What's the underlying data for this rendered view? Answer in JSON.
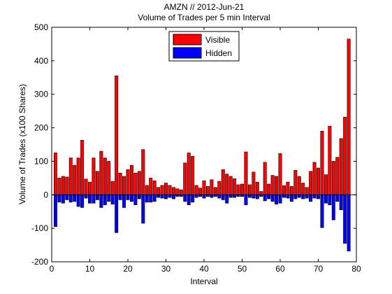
{
  "chart_data": {
    "type": "bar",
    "title": "AMZN // 2012-Jun-21",
    "subtitle": "Volume of Trades per 5 min Interval",
    "xlabel": "Interval",
    "ylabel": "Volume of Trades (x100 Shares)",
    "xlim": [
      0,
      80
    ],
    "ylim": [
      -200,
      500
    ],
    "xticks": [
      0,
      10,
      20,
      30,
      40,
      50,
      60,
      70,
      80
    ],
    "yticks": [
      -200,
      -100,
      0,
      100,
      200,
      300,
      400,
      500
    ],
    "grid": false,
    "legend": "top-center",
    "x": [
      1,
      2,
      3,
      4,
      5,
      6,
      7,
      8,
      9,
      10,
      11,
      12,
      13,
      14,
      15,
      16,
      17,
      18,
      19,
      20,
      21,
      22,
      23,
      24,
      25,
      26,
      27,
      28,
      29,
      30,
      31,
      32,
      33,
      34,
      35,
      36,
      37,
      38,
      39,
      40,
      41,
      42,
      43,
      44,
      45,
      46,
      47,
      48,
      49,
      50,
      51,
      52,
      53,
      54,
      55,
      56,
      57,
      58,
      59,
      60,
      61,
      62,
      63,
      64,
      65,
      66,
      67,
      68,
      69,
      70,
      71,
      72,
      73,
      74,
      75,
      76,
      77,
      78
    ],
    "series": [
      {
        "name": "Visible",
        "color": "#ff0000",
        "values": [
          125,
          50,
          55,
          53,
          110,
          88,
          110,
          163,
          47,
          38,
          110,
          70,
          130,
          110,
          100,
          40,
          355,
          65,
          55,
          75,
          88,
          65,
          70,
          135,
          28,
          50,
          42,
          22,
          28,
          35,
          28,
          22,
          18,
          15,
          95,
          125,
          115,
          28,
          20,
          42,
          25,
          45,
          22,
          40,
          75,
          62,
          55,
          48,
          30,
          32,
          128,
          30,
          68,
          38,
          10,
          97,
          32,
          58,
          55,
          123,
          27,
          38,
          25,
          73,
          55,
          35,
          22,
          70,
          97,
          80,
          190,
          60,
          205,
          100,
          112,
          168,
          232,
          465
        ]
      },
      {
        "name": "Hidden",
        "color": "#0000ff",
        "values": [
          -95,
          -22,
          -25,
          -15,
          -22,
          -20,
          -35,
          -38,
          -10,
          -25,
          -25,
          -15,
          -38,
          -30,
          -20,
          -28,
          -113,
          -15,
          -38,
          -15,
          -20,
          -30,
          -12,
          -85,
          -22,
          -22,
          -20,
          -8,
          -10,
          -12,
          -8,
          -12,
          -5,
          -5,
          -20,
          -30,
          -22,
          -8,
          -5,
          -10,
          -5,
          -8,
          -5,
          -10,
          -15,
          -25,
          -8,
          -8,
          -5,
          -5,
          -30,
          -8,
          -10,
          -12,
          -5,
          -18,
          -12,
          -20,
          -28,
          -25,
          -8,
          -10,
          -20,
          -12,
          -8,
          -12,
          -10,
          -20,
          -10,
          -12,
          -98,
          -25,
          -30,
          -75,
          -20,
          -45,
          -145,
          -168
        ]
      }
    ]
  }
}
